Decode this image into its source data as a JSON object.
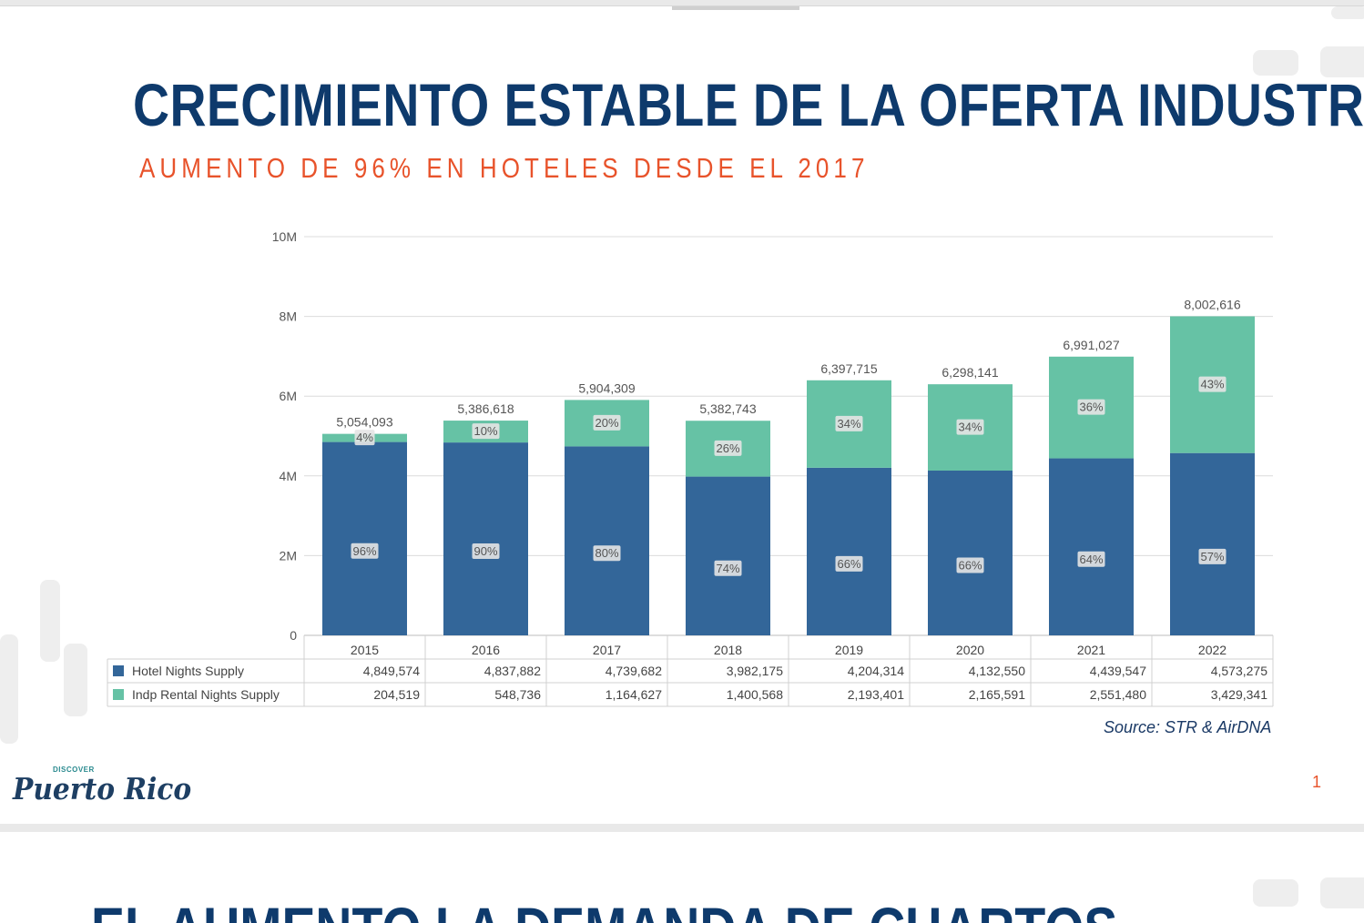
{
  "slide": {
    "title": "CRECIMIENTO ESTABLE DE LA OFERTA INDUSTRIAL",
    "subtitle": "AUMENTO DE 96% EN HOTELES DESDE EL 2017",
    "source": "Source: STR & AirDNA",
    "page_number": "1",
    "logo": {
      "small_text": "DISCOVER",
      "script_text": "Puerto Rico"
    }
  },
  "next_slide": {
    "title_partial": "EL AUMENTO LA DEMANDA DE CUARTOS"
  },
  "colors": {
    "hotel": "#336699",
    "rental": "#66c2a5",
    "title": "#0e3a6c",
    "subtitle": "#e8532b"
  },
  "chart_data": {
    "type": "bar",
    "stacked": true,
    "categories": [
      "2015",
      "2016",
      "2017",
      "2018",
      "2019",
      "2020",
      "2021",
      "2022"
    ],
    "y_ticks": [
      "0",
      "2M",
      "4M",
      "6M",
      "8M",
      "10M"
    ],
    "ylim": [
      0,
      10000000
    ],
    "grid": true,
    "series": [
      {
        "name": "Hotel Nights Supply",
        "values": [
          4849574,
          4837882,
          4739682,
          3982175,
          4204314,
          4132550,
          4439547,
          4573275
        ],
        "display": [
          "4,849,574",
          "4,837,882",
          "4,739,682",
          "3,982,175",
          "4,204,314",
          "4,132,550",
          "4,439,547",
          "4,573,275"
        ],
        "percent_labels": [
          "96%",
          "90%",
          "80%",
          "74%",
          "66%",
          "66%",
          "64%",
          "57%"
        ]
      },
      {
        "name": "Indp Rental Nights Supply",
        "values": [
          204519,
          548736,
          1164627,
          1400568,
          2193401,
          2165591,
          2551480,
          3429341
        ],
        "display": [
          "204,519",
          "548,736",
          "1,164,627",
          "1,400,568",
          "2,193,401",
          "2,165,591",
          "2,551,480",
          "3,429,341"
        ],
        "percent_labels": [
          "4%",
          "10%",
          "20%",
          "26%",
          "34%",
          "34%",
          "36%",
          "43%"
        ]
      }
    ],
    "totals": [
      "5,054,093",
      "5,386,618",
      "5,904,309",
      "5,382,743",
      "6,397,715",
      "6,298,141",
      "6,991,027",
      "8,002,616"
    ],
    "data_table": true
  }
}
